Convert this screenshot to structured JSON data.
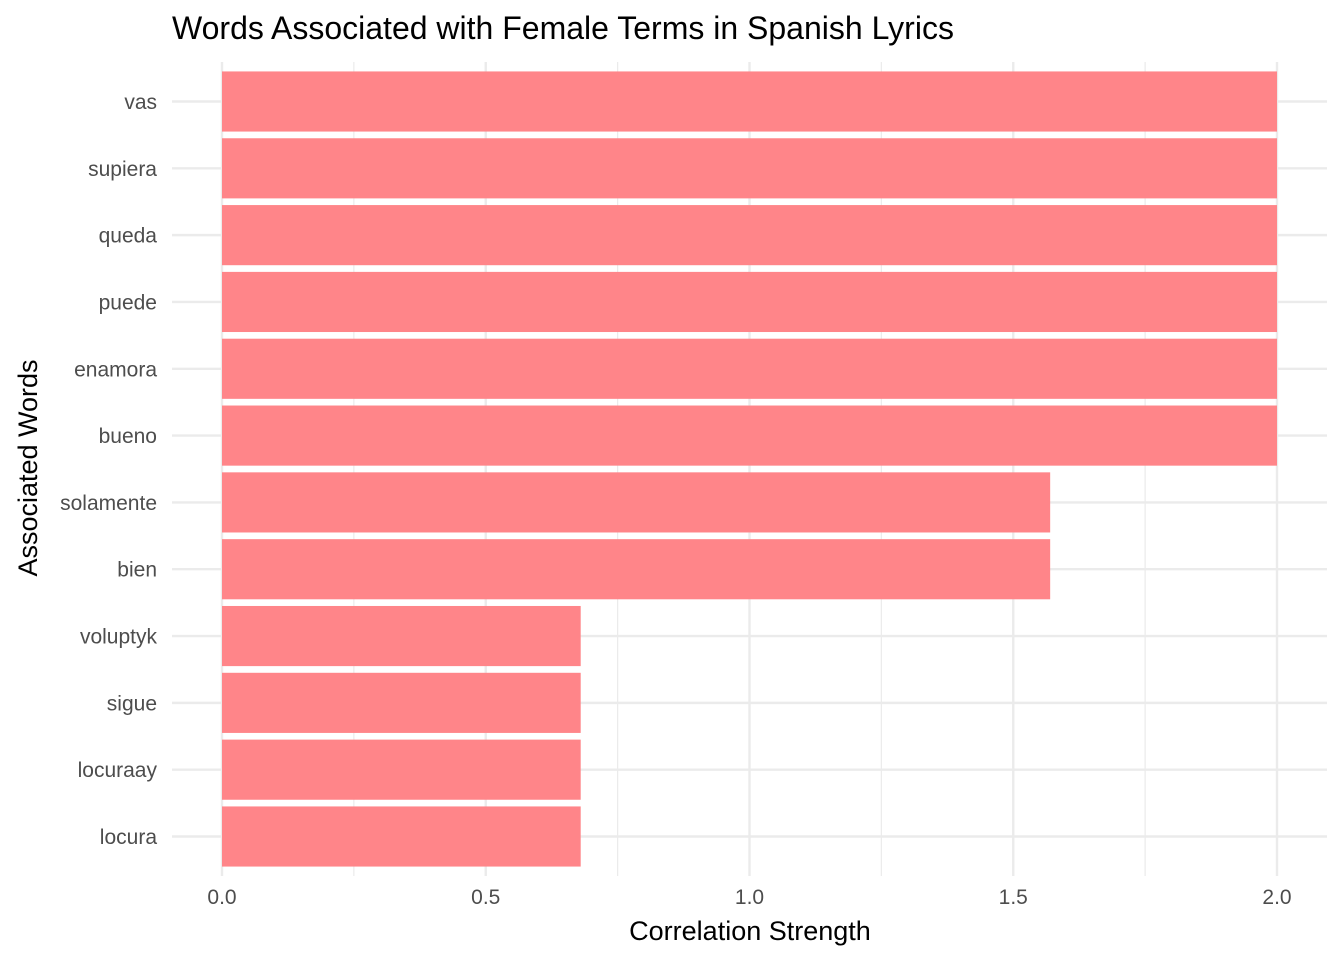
{
  "chart_data": {
    "type": "bar",
    "orientation": "horizontal",
    "title": "Words Associated with Female Terms in Spanish Lyrics",
    "xlabel": "Correlation Strength",
    "ylabel": "Associated Words",
    "categories": [
      "vas",
      "supiera",
      "queda",
      "puede",
      "enamora",
      "bueno",
      "solamente",
      "bien",
      "voluptyk",
      "sigue",
      "locuraay",
      "locura"
    ],
    "values": [
      2.0,
      2.0,
      2.0,
      2.0,
      2.0,
      2.0,
      1.57,
      1.57,
      0.68,
      0.68,
      0.68,
      0.68
    ],
    "xlim": [
      0,
      2.0
    ],
    "xticks": [
      "0.0",
      "0.5",
      "1.0",
      "1.5",
      "2.0"
    ],
    "grid": true,
    "legend": "none",
    "colors": {
      "bar": "#ff8589",
      "grid": "#ebebeb",
      "background": "#ffffff"
    }
  }
}
